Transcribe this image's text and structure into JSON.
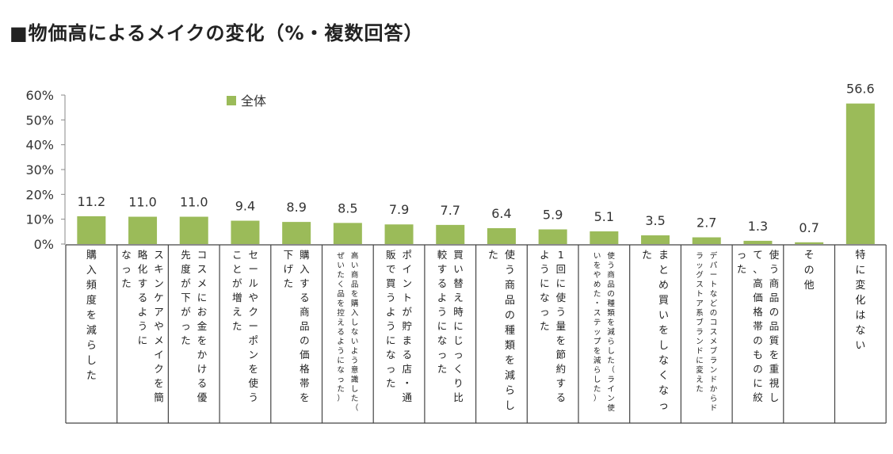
{
  "title": "■物価高によるメイクの変化（%・複数回答）",
  "chart_data": {
    "type": "bar",
    "series": [
      {
        "name": "全体",
        "color": "#9BBB59",
        "values": [
          11.2,
          11.0,
          11.0,
          9.4,
          8.9,
          8.5,
          7.9,
          7.7,
          6.4,
          5.9,
          5.1,
          3.5,
          2.7,
          1.3,
          0.7,
          56.6
        ]
      }
    ],
    "data_labels": [
      "11.2",
      "11.0",
      "11.0",
      "9.4",
      "8.9",
      "8.5",
      "7.9",
      "7.7",
      "6.4",
      "5.9",
      "5.1",
      "3.5",
      "2.7",
      "1.3",
      "0.7",
      "56.6"
    ],
    "categories": [
      [
        "購入頻度を減らした"
      ],
      [
        "スキンケアやメイクを簡略化するように",
        "なった"
      ],
      [
        "コスメにお金をかける優先度が下がった"
      ],
      [
        "セールやクーポンを使うことが増えた"
      ],
      [
        "購入する商品の価格帯を下げた"
      ],
      [
        "高い商品を購入しないよう意識した（ぜいたく品を控えるようになった）"
      ],
      [
        "ポイントが貯まる店・通販で買うようになった"
      ],
      [
        "買い替え時にじっくり比較するようになった"
      ],
      [
        "使う商品の種類を減らした"
      ],
      [
        "1回に使う量を節約するようになった"
      ],
      [
        "使う商品の種類を減らした（ライン使いをやめた・ステップを減らした）"
      ],
      [
        "まとめ買いをしなくなった"
      ],
      [
        "デパートなどのコスメブランドからドラッグストア系ブランドに変えた"
      ],
      [
        "使う商品の品質を重視して、高価格帯のものに絞った"
      ],
      [
        "その他"
      ],
      [
        "特に変化はない"
      ]
    ],
    "y_ticks": [
      "0%",
      "10%",
      "20%",
      "30%",
      "40%",
      "50%",
      "60%"
    ],
    "ylim": [
      0,
      60
    ],
    "legend": "top-left",
    "grid": false
  }
}
